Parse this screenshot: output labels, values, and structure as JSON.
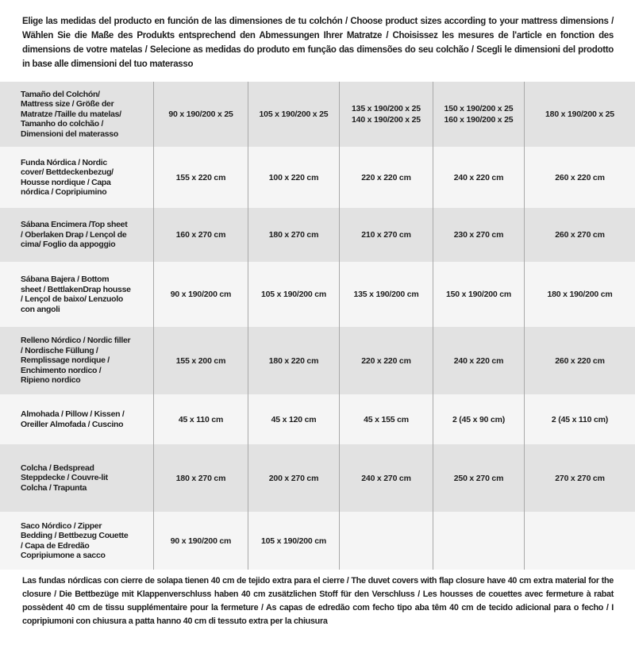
{
  "intro": {
    "text": "Elige las medidas del producto en función de las dimensiones de tu colchón / Choose product sizes according to your mattress dimensions / Wählen Sie die Maße des Produkts entsprechend den Abmessungen Ihrer Matratze / Choisissez les mesures de l'article en fonction des dimensions de votre matelas / Selecione as medidas do produto em função das dimensões do seu colchão / Scegli le dimensioni del prodotto in base alle dimensioni del tuo materasso"
  },
  "table": {
    "rows": [
      {
        "label": "Tamaño del Colchón/ Mattress size / Größe der Matratze /Taille du matelas/ Tamanho do colchão / Dimensioni del materasso",
        "values": [
          "90 x 190/200 x 25",
          "105 x 190/200 x 25",
          "135 x 190/200 x 25\n140 x 190/200 x 25",
          "150 x 190/200 x 25\n160 x 190/200 x 25",
          "180 x 190/200 x 25"
        ]
      },
      {
        "label": "Funda Nórdica /  Nordic cover/ Bettdeckenbezug/ Housse nordique  / Capa nórdica / Copripiumino",
        "values": [
          "155 x 220 cm",
          "100 x 220 cm",
          "220 x 220 cm",
          "240 x 220 cm",
          "260 x 220 cm"
        ]
      },
      {
        "label": "Sábana Encimera /Top sheet / Oberlaken Drap / Lençol de cima/ Foglio da appoggio",
        "values": [
          "160 x 270 cm",
          "180 x 270 cm",
          "210 x 270 cm",
          "230 x 270 cm",
          "260 x 270 cm"
        ]
      },
      {
        "label": "Sábana Bajera / Bottom sheet / BettlakenDrap housse / Lençol de baixo/ Lenzuolo con angoli",
        "values": [
          "90 x 190/200 cm",
          "105 x 190/200 cm",
          "135 x 190/200 cm",
          "150 x 190/200 cm",
          "180 x 190/200 cm"
        ]
      },
      {
        "label": "Relleno Nórdico / Nordic filler / Nordische Füllung / Remplissage nordique / Enchimento nordico / Ripieno nordico",
        "values": [
          "155 x 200 cm",
          "180 x 220 cm",
          "220 x 220 cm",
          "240 x 220 cm",
          "260 x 220 cm"
        ]
      },
      {
        "label": "Almohada  / Pillow / Kissen / Oreiller Almofada / Cuscino",
        "values": [
          "45 x 110 cm",
          "45 x 120 cm",
          "45 x 155 cm",
          "2 (45 x 90 cm)",
          "2 (45 x 110 cm)"
        ]
      },
      {
        "label": "Colcha / Bedspread Steppdecke / Couvre-lit Colcha / Trapunta",
        "values": [
          "180 x 270 cm",
          "200 x 270 cm",
          "240 x 270 cm",
          "250 x 270 cm",
          "270 x 270 cm"
        ]
      },
      {
        "label": "Saco Nórdico / Zipper Bedding / Bettbezug Couette  / Capa de Edredão Copripiumone a sacco",
        "values": [
          "90 x 190/200 cm",
          "105 x 190/200 cm",
          "",
          "",
          ""
        ]
      }
    ]
  },
  "footer": {
    "text": "Las fundas nórdicas con cierre de solapa tienen 40 cm de tejido extra para el cierre  / The duvet covers with flap closure have 40 cm extra material for the closure / Die Bettbezüge mit Klappenverschluss haben 40 cm zusätzlichen Stoff für den Verschluss / Les housses de couettes avec fermeture à rabat possèdent 40 cm de tissu supplémentaire pour la fermeture / As capas de edredão com fecho tipo aba têm 40 cm de tecido adicional para o fecho / I copripiumoni con chiusura a patta hanno 40 cm di tessuto extra per la chiusura"
  },
  "colors": {
    "row_shade_dark": "#e2e2e2",
    "row_shade_light": "#f5f5f5",
    "divider": "#a9a9a9",
    "text": "#1d1d1d",
    "background": "#ffffff"
  }
}
